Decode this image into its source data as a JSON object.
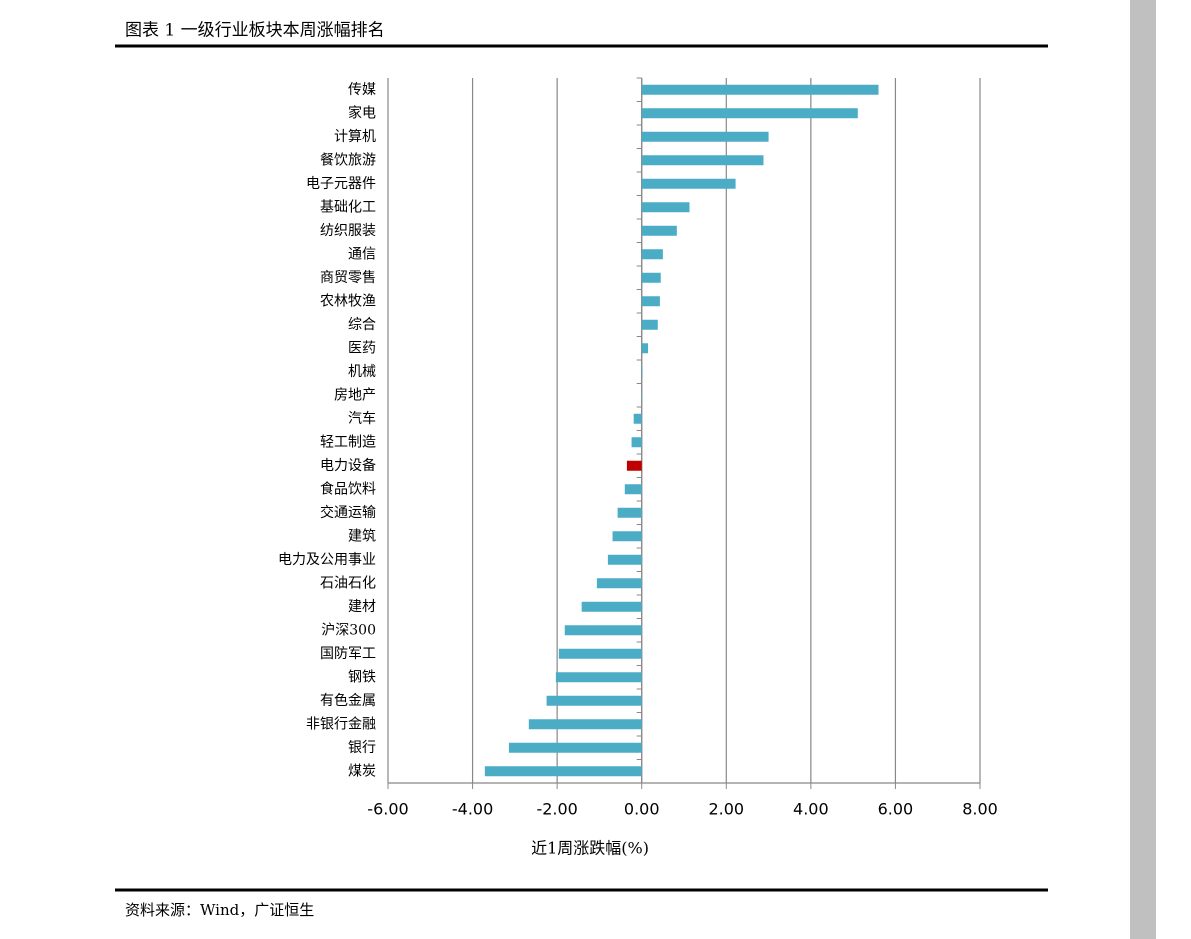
{
  "header": {
    "title": "图表 1 一级行业板块本周涨幅排名"
  },
  "chart_data": {
    "type": "hbar",
    "categories": [
      "传媒",
      "家电",
      "计算机",
      "餐饮旅游",
      "电子元器件",
      "基础化工",
      "纺织服装",
      "通信",
      "商贸零售",
      "农林牧渔",
      "综合",
      "医药",
      "机械",
      "房地产",
      "汽车",
      "轻工制造",
      "电力设备",
      "食品饮料",
      "交通运输",
      "建筑",
      "电力及公用事业",
      "石油石化",
      "建材",
      "沪深300",
      "国防军工",
      "钢铁",
      "有色金属",
      "非银行金融",
      "银行",
      "煤炭"
    ],
    "values": [
      5.6,
      5.11,
      3.0,
      2.88,
      2.22,
      1.13,
      0.83,
      0.5,
      0.45,
      0.43,
      0.38,
      0.15,
      0.02,
      0.01,
      -0.19,
      -0.24,
      -0.35,
      -0.4,
      -0.57,
      -0.69,
      -0.8,
      -1.06,
      -1.42,
      -1.82,
      -1.96,
      -2.03,
      -2.25,
      -2.67,
      -3.14,
      -3.71
    ],
    "colors": [
      "#4bacc6",
      "#4bacc6",
      "#4bacc6",
      "#4bacc6",
      "#4bacc6",
      "#4bacc6",
      "#4bacc6",
      "#4bacc6",
      "#4bacc6",
      "#4bacc6",
      "#4bacc6",
      "#4bacc6",
      "#4bacc6",
      "#4bacc6",
      "#4bacc6",
      "#4bacc6",
      "#c00000",
      "#4bacc6",
      "#4bacc6",
      "#4bacc6",
      "#4bacc6",
      "#4bacc6",
      "#4bacc6",
      "#4bacc6",
      "#4bacc6",
      "#4bacc6",
      "#4bacc6",
      "#4bacc6",
      "#4bacc6",
      "#4bacc6"
    ],
    "xlim": [
      -6,
      8
    ],
    "xticks": [
      {
        "value": -6,
        "label": "-6.00"
      },
      {
        "value": -4,
        "label": "-4.00"
      },
      {
        "value": -2,
        "label": "-2.00"
      },
      {
        "value": 0,
        "label": "0.00"
      },
      {
        "value": 2,
        "label": "2.00"
      },
      {
        "value": 4,
        "label": "4.00"
      },
      {
        "value": 6,
        "label": "6.00"
      },
      {
        "value": 8,
        "label": "8.00"
      }
    ],
    "xlabel": "近1周涨跌幅(%)",
    "grid": true
  },
  "footer": {
    "source": "资料来源：Wind，广证恒生"
  }
}
